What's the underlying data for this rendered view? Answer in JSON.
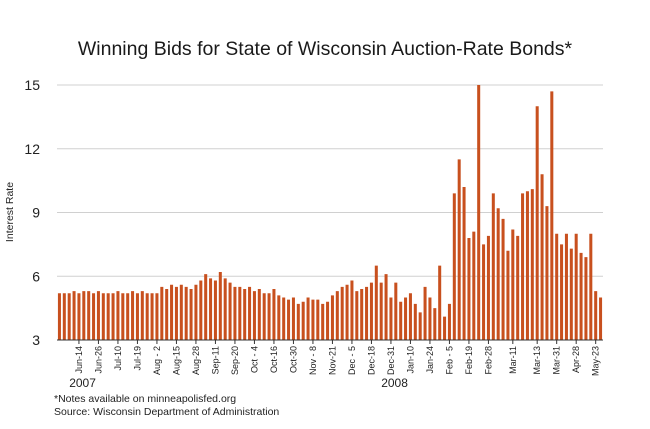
{
  "title": "Winning Bids for State of Wisconsin Auction-Rate Bonds*",
  "notes": {
    "line1": "*Notes available on minneapolisfed.org",
    "line2": "Source: Wisconsin Department of Administration"
  },
  "colors": {
    "bar": "#c8501e",
    "grid": "#d0d0d0",
    "axis": "#333333"
  },
  "chart_data": {
    "type": "bar",
    "title": "Winning Bids for State of Wisconsin Auction-Rate Bonds*",
    "ylabel": "Interest Rate",
    "xlabel": "",
    "ylim": [
      3,
      15
    ],
    "yticks": [
      3,
      6,
      9,
      12,
      15
    ],
    "grid": true,
    "year_labels": [
      {
        "label": "2007",
        "index": 2
      },
      {
        "label": "2008",
        "index": 66
      }
    ],
    "x_tick_labels": [
      {
        "label": "Jun-14",
        "index": 4
      },
      {
        "label": "Jun-26",
        "index": 8
      },
      {
        "label": "Jul-10",
        "index": 12
      },
      {
        "label": "Jul-19",
        "index": 16
      },
      {
        "label": "Aug - 2",
        "index": 20
      },
      {
        "label": "Aug-15",
        "index": 24
      },
      {
        "label": "Aug-28",
        "index": 28
      },
      {
        "label": "Sep-11",
        "index": 32
      },
      {
        "label": "Sep-20",
        "index": 36
      },
      {
        "label": "Oct - 4",
        "index": 40
      },
      {
        "label": "Oct-16",
        "index": 44
      },
      {
        "label": "Oct-30",
        "index": 48
      },
      {
        "label": "Nov - 8",
        "index": 52
      },
      {
        "label": "Nov-21",
        "index": 56
      },
      {
        "label": "Dec - 5",
        "index": 60
      },
      {
        "label": "Dec-18",
        "index": 64
      },
      {
        "label": "Dec-31",
        "index": 68
      },
      {
        "label": "Jan-10",
        "index": 72
      },
      {
        "label": "Jan-24",
        "index": 76
      },
      {
        "label": "Feb - 5",
        "index": 80
      },
      {
        "label": "Feb-19",
        "index": 84
      },
      {
        "label": "Feb-28",
        "index": 88
      },
      {
        "label": "Mar-11",
        "index": 93
      },
      {
        "label": "Mar-13",
        "index": 98
      },
      {
        "label": "Mar-31",
        "index": 102
      },
      {
        "label": "Apr-28",
        "index": 106
      },
      {
        "label": "May-23",
        "index": 110
      }
    ],
    "values": [
      5.2,
      5.2,
      5.2,
      5.3,
      5.2,
      5.3,
      5.3,
      5.2,
      5.3,
      5.2,
      5.2,
      5.2,
      5.3,
      5.2,
      5.2,
      5.3,
      5.2,
      5.3,
      5.2,
      5.2,
      5.2,
      5.5,
      5.4,
      5.6,
      5.5,
      5.6,
      5.5,
      5.4,
      5.6,
      5.8,
      6.1,
      5.9,
      5.8,
      6.2,
      5.9,
      5.7,
      5.5,
      5.5,
      5.4,
      5.5,
      5.3,
      5.4,
      5.2,
      5.2,
      5.4,
      5.1,
      5.0,
      4.9,
      5.0,
      4.7,
      4.8,
      5.0,
      4.9,
      4.9,
      4.7,
      4.8,
      5.1,
      5.3,
      5.5,
      5.6,
      5.8,
      5.3,
      5.4,
      5.5,
      5.7,
      6.5,
      5.7,
      6.1,
      5.0,
      5.7,
      4.8,
      5.0,
      5.2,
      4.7,
      4.3,
      5.5,
      5.0,
      4.5,
      6.5,
      4.1,
      4.7,
      9.9,
      11.5,
      10.2,
      7.8,
      8.1,
      15.0,
      7.5,
      7.9,
      9.9,
      9.2,
      8.7,
      7.2,
      8.2,
      7.9,
      9.9,
      10.0,
      10.1,
      14.0,
      10.8,
      9.3,
      14.7,
      8.0,
      7.5,
      8.0,
      7.3,
      8.0,
      7.1,
      6.9,
      8.0,
      5.3,
      5.0
    ]
  }
}
